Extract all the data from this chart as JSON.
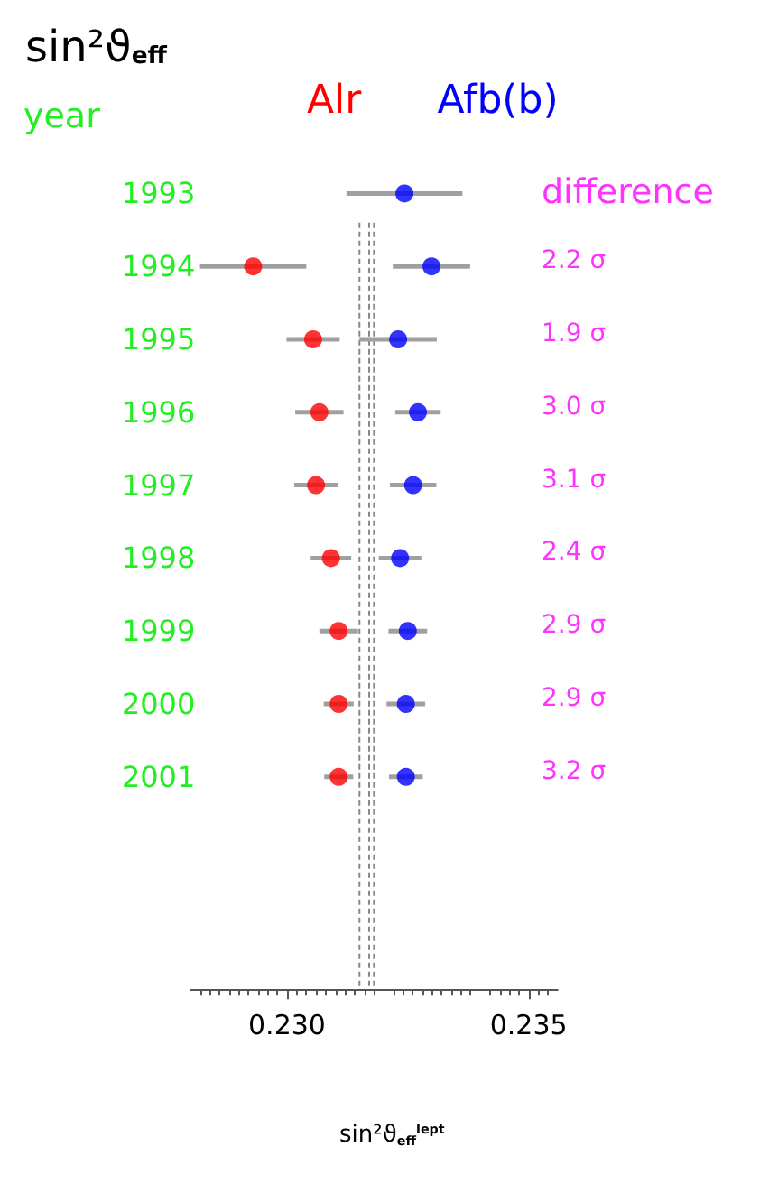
{
  "chart_data": {
    "type": "scatter",
    "title": "sin²ϑ$_{eff}$",
    "xlabel": "sin²ϑ$_{eff}$$^{lept}$",
    "ylabel": "year",
    "categories": [
      "1993",
      "1994",
      "1995",
      "1996",
      "1997",
      "1998",
      "1999",
      "2000",
      "2001"
    ],
    "series": [
      {
        "name": "Alr",
        "color": "#ff0000",
        "values": [
          null,
          0.2293,
          0.23054,
          0.23067,
          0.2306,
          0.23091,
          0.23107,
          0.23107,
          0.23107
        ],
        "errors": [
          null,
          0.0011,
          0.00055,
          0.0005,
          0.00045,
          0.00042,
          0.0004,
          0.00031,
          0.0003
        ]
      },
      {
        "name": "Afb(b)",
        "color": "#0000ff",
        "values": [
          0.23243,
          0.23299,
          0.2323,
          0.23271,
          0.23261,
          0.23234,
          0.2325,
          0.23246,
          0.23246
        ],
        "errors": [
          0.0012,
          0.0008,
          0.0008,
          0.00047,
          0.00048,
          0.00044,
          0.0004,
          0.0004,
          0.00035
        ]
      }
    ],
    "orientation": "horizontal",
    "marker": "circle",
    "legend": "top",
    "grid": false,
    "xlim": [
      0.228,
      0.2356
    ],
    "xticks": [
      {
        "value": 0.23,
        "label": "0.230"
      },
      {
        "value": 0.235,
        "label": "0.235"
      }
    ],
    "ref_lines": [
      {
        "axis": "x",
        "value": 0.2315,
        "color": "#888888",
        "line_style": "dashed"
      },
      {
        "axis": "x",
        "value": 0.2317,
        "color": "#888888",
        "line_style": "dashed"
      },
      {
        "axis": "x",
        "value": 0.2318,
        "color": "#888888",
        "line_style": "dashed"
      }
    ],
    "annotations": [
      "difference",
      "2.2 σ",
      "1.9 σ",
      "3.0 σ",
      "3.1 σ",
      "2.4 σ",
      "2.9 σ",
      "2.9 σ",
      "3.2 σ"
    ]
  }
}
